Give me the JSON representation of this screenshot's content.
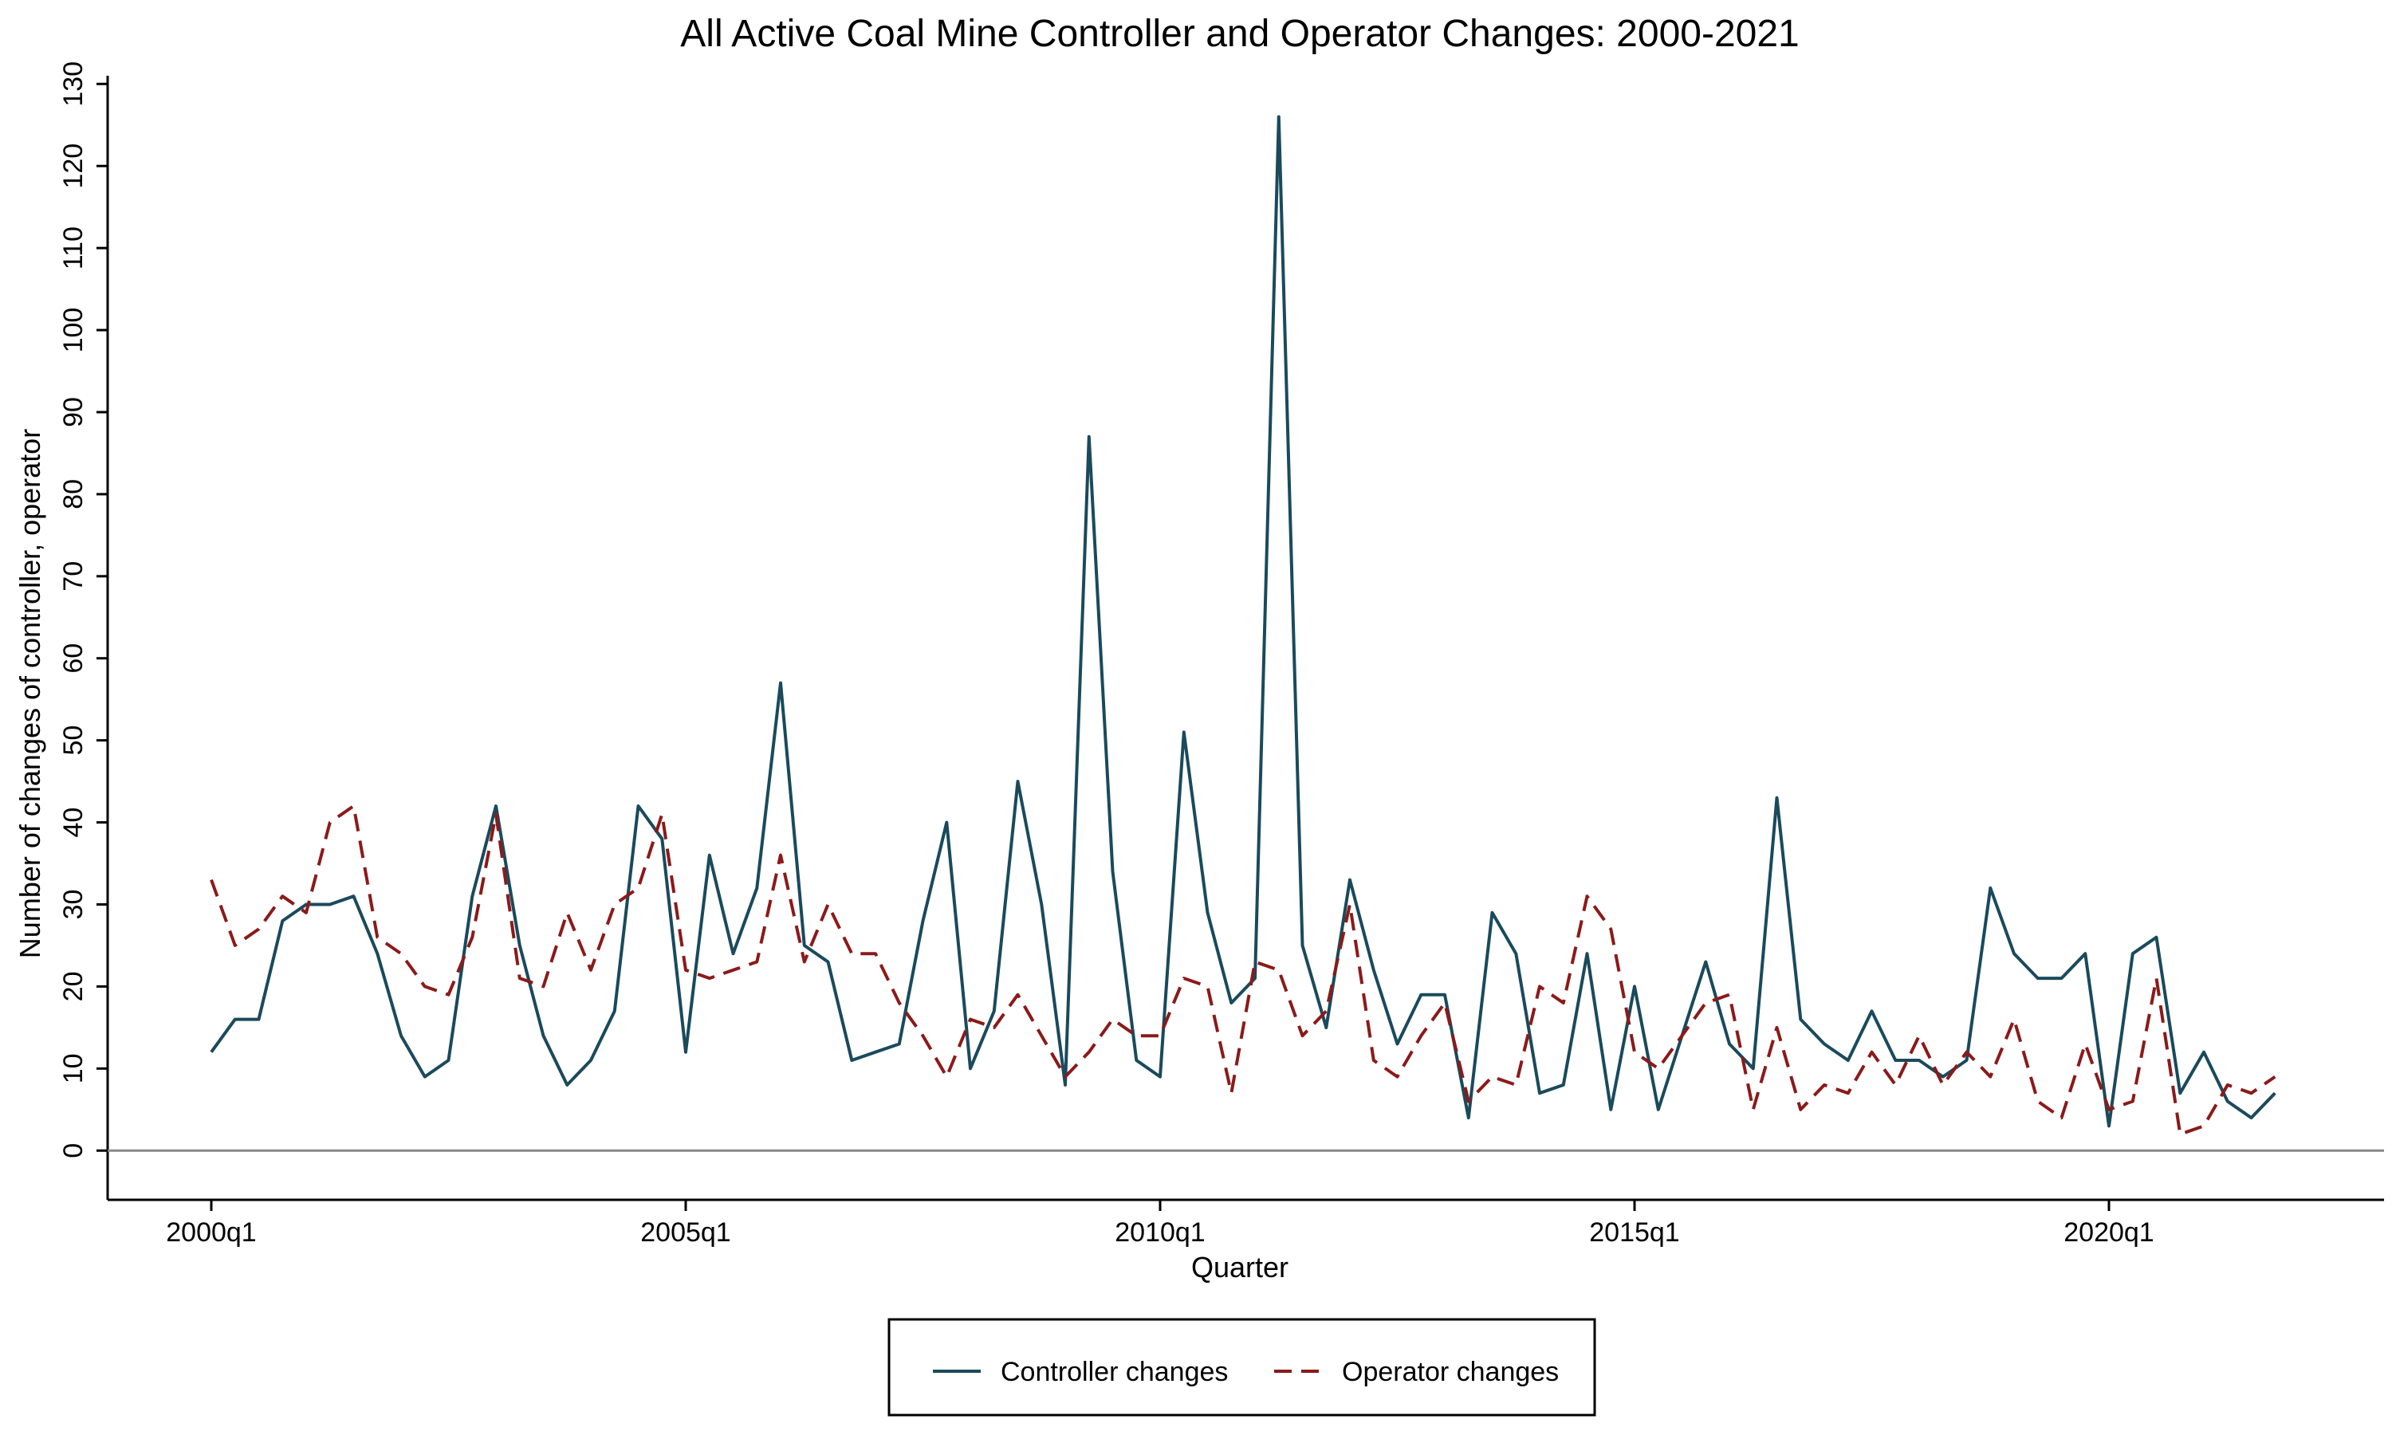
{
  "chart_data": {
    "type": "line",
    "title": "All Active Coal Mine Controller and Operator Changes: 2000-2021",
    "xlabel": "Quarter",
    "ylabel": "Number of changes of controller, operator",
    "x_tick_labels": [
      "2000q1",
      "2005q1",
      "2010q1",
      "2015q1",
      "2020q1"
    ],
    "x_tick_quarter_index": [
      0,
      20,
      40,
      60,
      80
    ],
    "x_start": "2000q1",
    "ylim": [
      -6,
      131
    ],
    "y_ticks": [
      0,
      10,
      20,
      30,
      40,
      50,
      60,
      70,
      80,
      90,
      100,
      110,
      120,
      130
    ],
    "x": [
      "2000q1",
      "2000q2",
      "2000q3",
      "2000q4",
      "2001q1",
      "2001q2",
      "2001q3",
      "2001q4",
      "2002q1",
      "2002q2",
      "2002q3",
      "2002q4",
      "2003q1",
      "2003q2",
      "2003q3",
      "2003q4",
      "2004q1",
      "2004q2",
      "2004q3",
      "2004q4",
      "2005q1",
      "2005q2",
      "2005q3",
      "2005q4",
      "2006q1",
      "2006q2",
      "2006q3",
      "2006q4",
      "2007q1",
      "2007q2",
      "2007q3",
      "2007q4",
      "2008q1",
      "2008q2",
      "2008q3",
      "2008q4",
      "2009q1",
      "2009q2",
      "2009q3",
      "2009q4",
      "2010q1",
      "2010q2",
      "2010q3",
      "2010q4",
      "2011q1",
      "2011q2",
      "2011q3",
      "2011q4",
      "2012q1",
      "2012q2",
      "2012q3",
      "2012q4",
      "2013q1",
      "2013q2",
      "2013q3",
      "2013q4",
      "2014q1",
      "2014q2",
      "2014q3",
      "2014q4",
      "2015q1",
      "2015q2",
      "2015q3",
      "2015q4",
      "2016q1",
      "2016q2",
      "2016q3",
      "2016q4",
      "2017q1",
      "2017q2",
      "2017q3",
      "2017q4",
      "2018q1",
      "2018q2",
      "2018q3",
      "2018q4",
      "2019q1",
      "2019q2",
      "2019q3",
      "2019q4",
      "2020q1",
      "2020q2",
      "2020q3",
      "2020q4",
      "2021q1",
      "2021q2",
      "2021q3",
      "2021q4"
    ],
    "series": [
      {
        "name": "Controller changes",
        "color": "#1a4a5c",
        "dash": "solid",
        "values": [
          12,
          16,
          16,
          28,
          30,
          30,
          31,
          24,
          14,
          9,
          11,
          31,
          42,
          25,
          14,
          8,
          11,
          17,
          42,
          38,
          12,
          36,
          24,
          32,
          57,
          25,
          23,
          11,
          12,
          13,
          28,
          40,
          10,
          17,
          45,
          30,
          8,
          87,
          34,
          11,
          9,
          51,
          29,
          18,
          21,
          126,
          25,
          15,
          33,
          22,
          13,
          19,
          19,
          4,
          29,
          24,
          7,
          8,
          24,
          5,
          20,
          5,
          14,
          23,
          13,
          10,
          43,
          16,
          13,
          11,
          17,
          11,
          11,
          9,
          11,
          32,
          24,
          21,
          21,
          24,
          3,
          24,
          26,
          7,
          12,
          6,
          4,
          7
        ]
      },
      {
        "name": "Operator changes",
        "color": "#8b1a1a",
        "dash": "dashed",
        "values": [
          33,
          25,
          27,
          31,
          29,
          40,
          42,
          26,
          24,
          20,
          19,
          26,
          41,
          21,
          20,
          29,
          22,
          30,
          32,
          41,
          22,
          21,
          22,
          23,
          36,
          23,
          30,
          24,
          24,
          18,
          14,
          9,
          16,
          15,
          19,
          14,
          9,
          12,
          16,
          14,
          14,
          21,
          20,
          7,
          23,
          22,
          14,
          17,
          30,
          11,
          9,
          14,
          18,
          6,
          9,
          8,
          20,
          18,
          31,
          27,
          12,
          10,
          14,
          18,
          19,
          5,
          15,
          5,
          8,
          7,
          12,
          8,
          14,
          8,
          12,
          9,
          16,
          6,
          4,
          13,
          5,
          6,
          21,
          2,
          3,
          8,
          7,
          9
        ]
      }
    ],
    "legend": {
      "position": "bottom",
      "entries": [
        "Controller changes",
        "Operator changes"
      ]
    }
  }
}
